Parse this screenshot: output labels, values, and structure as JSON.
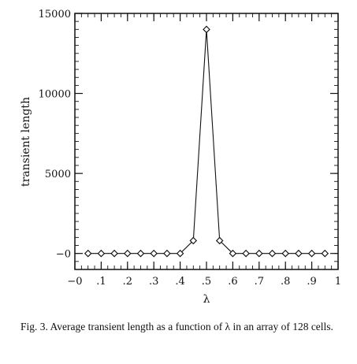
{
  "chart_data": {
    "type": "line",
    "xlabel": "λ",
    "ylabel": "transient length",
    "xlim": [
      0,
      1
    ],
    "ylim": [
      -1000,
      15000
    ],
    "x_tick_labels": [
      "−0",
      ".1",
      ".2",
      ".3",
      ".4",
      ".5",
      ".6",
      ".7",
      ".8",
      ".9",
      "1"
    ],
    "y_tick_labels": [
      "−0",
      "5000",
      "10000",
      "15000"
    ],
    "x_ticks": [
      0,
      0.1,
      0.2,
      0.3,
      0.4,
      0.5,
      0.6,
      0.7,
      0.8,
      0.9,
      1
    ],
    "y_ticks": [
      0,
      5000,
      10000,
      15000
    ],
    "marker": "diamond",
    "x": [
      0.05,
      0.1,
      0.15,
      0.2,
      0.25,
      0.3,
      0.35,
      0.4,
      0.45,
      0.5,
      0.55,
      0.6,
      0.65,
      0.7,
      0.75,
      0.8,
      0.85,
      0.9,
      0.95
    ],
    "y": [
      0,
      0,
      0,
      0,
      0,
      0,
      0,
      0,
      800,
      14000,
      800,
      0,
      0,
      0,
      0,
      0,
      0,
      0,
      0
    ]
  },
  "caption": "Fig. 3. Average transient length as a function of λ in an array of 128 cells."
}
